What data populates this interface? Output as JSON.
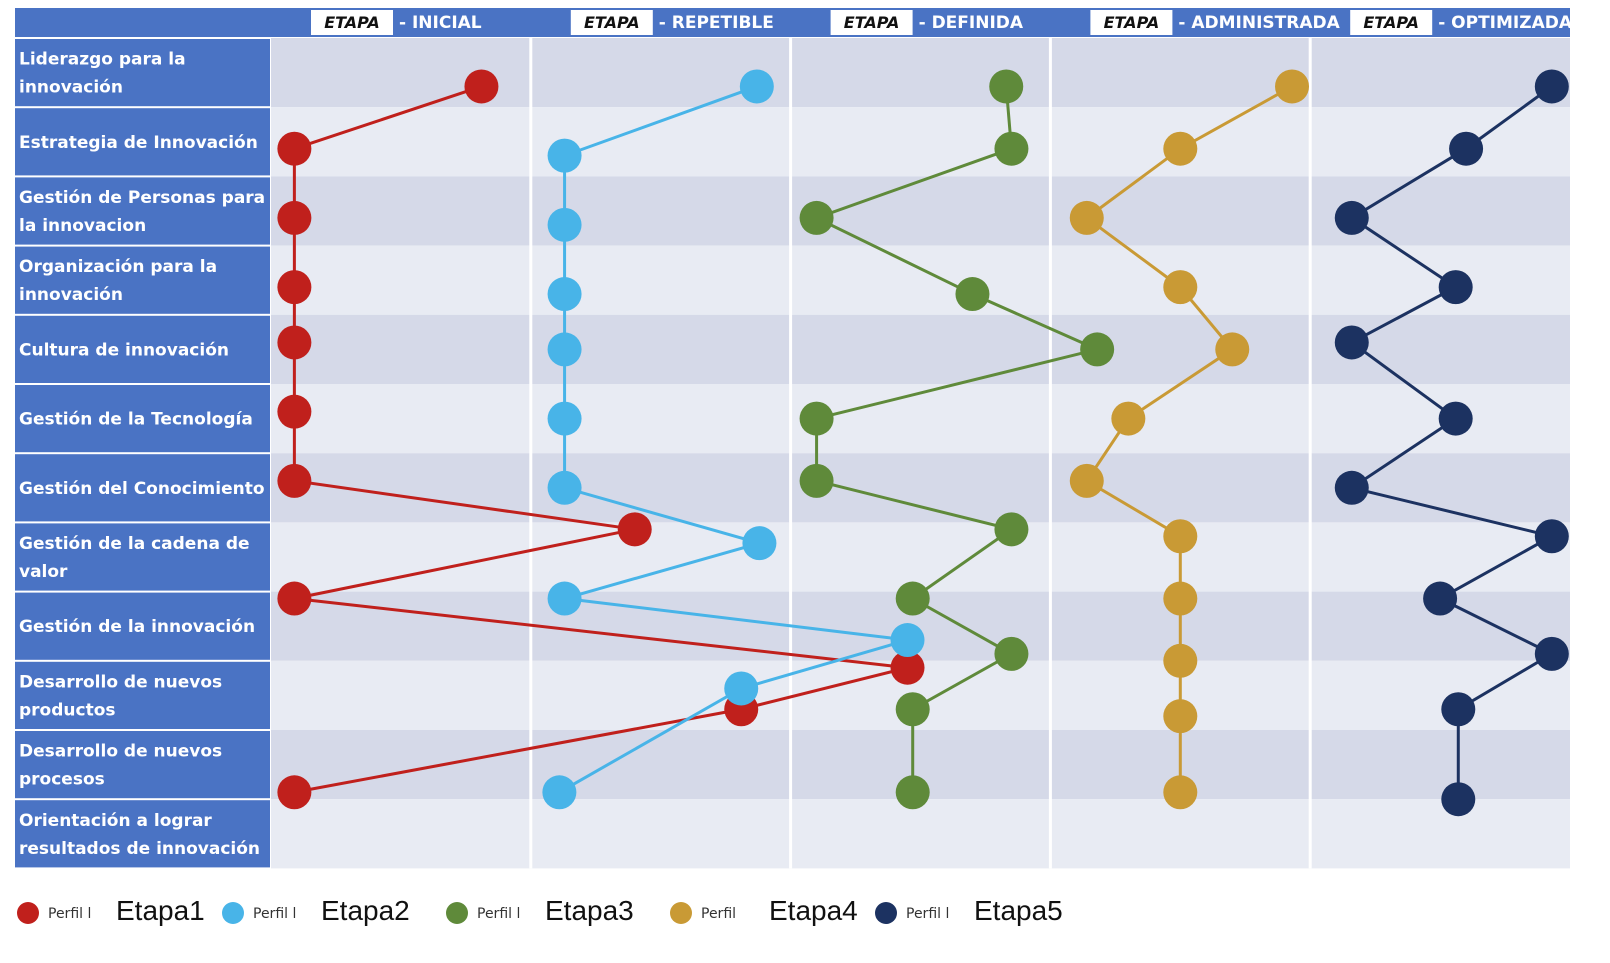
{
  "chart_data": {
    "type": "line",
    "orientation": "horizontal-profile",
    "stages": [
      {
        "etapa": "ETAPA",
        "name": "INICIAL"
      },
      {
        "etapa": "ETAPA",
        "name": "REPETIBLE"
      },
      {
        "etapa": "ETAPA",
        "name": "DEFINIDA"
      },
      {
        "etapa": "ETAPA",
        "name": "ADMINISTRADA"
      },
      {
        "etapa": "ETAPA",
        "name": "OPTIMIZADA"
      }
    ],
    "categories": [
      [
        "Liderazgo para la",
        "innovación"
      ],
      [
        "Estrategia de Innovación"
      ],
      [
        "Gestión de Personas para",
        "la innovacion"
      ],
      [
        "Organización para la",
        "innovación"
      ],
      [
        "Cultura de innovación"
      ],
      [
        "Gestión de la Tecnología"
      ],
      [
        "Gestión del Conocimiento"
      ],
      [
        "Gestión de la cadena de",
        "valor"
      ],
      [
        "Gestión de la innovación"
      ],
      [
        "Desarrollo de nuevos",
        "productos"
      ],
      [
        "Desarrollo de nuevos",
        "procesos"
      ],
      [
        "Orientación a lograr",
        "resultados de innovación"
      ]
    ],
    "xlim": [
      0,
      5
    ],
    "series": [
      {
        "key": "s1",
        "color": "#c0201c",
        "values": [
          0.81,
          0.09,
          0.09,
          0.09,
          0.09,
          0.09,
          0.09,
          1.4,
          0.09,
          2.45,
          1.81,
          0.09
        ],
        "row_pos": [
          0.2,
          1.1,
          2.1,
          3.1,
          3.9,
          4.9,
          5.9,
          6.6,
          7.6,
          8.6,
          9.2,
          10.4
        ]
      },
      {
        "key": "s2",
        "color": "#48b4e8",
        "values": [
          1.87,
          1.13,
          1.13,
          1.13,
          1.13,
          1.13,
          1.13,
          1.88,
          1.13,
          2.45,
          1.81,
          1.11
        ],
        "row_pos": [
          0.2,
          1.2,
          2.2,
          3.2,
          4.0,
          5.0,
          6.0,
          6.8,
          7.6,
          8.2,
          8.9,
          10.4
        ]
      },
      {
        "key": "s3",
        "color": "#5f8a3a",
        "values": [
          2.83,
          2.85,
          2.1,
          2.7,
          3.18,
          2.1,
          2.1,
          2.85,
          2.47,
          2.85,
          2.47,
          2.47
        ],
        "row_pos": [
          0.2,
          1.1,
          2.1,
          3.2,
          4.0,
          5.0,
          5.9,
          6.6,
          7.6,
          8.4,
          9.2,
          10.4
        ]
      },
      {
        "key": "s4",
        "color": "#c99a35",
        "values": [
          3.93,
          3.5,
          3.14,
          3.5,
          3.7,
          3.3,
          3.14,
          3.5,
          3.5,
          3.5,
          3.5,
          3.5
        ],
        "row_pos": [
          0.2,
          1.1,
          2.1,
          3.1,
          4.0,
          5.0,
          5.9,
          6.7,
          7.6,
          8.5,
          9.3,
          10.4
        ]
      },
      {
        "key": "s5",
        "color": "#1c3261",
        "values": [
          4.93,
          4.6,
          4.16,
          4.56,
          4.16,
          4.56,
          4.16,
          4.93,
          4.5,
          4.93,
          4.57,
          4.57
        ],
        "row_pos": [
          0.2,
          1.1,
          2.1,
          3.1,
          3.9,
          5.0,
          6.0,
          6.7,
          7.6,
          8.4,
          9.2,
          10.5
        ]
      }
    ],
    "legend": {
      "position": "bottom-left",
      "items": [
        {
          "small": "Perfil l",
          "big": "Etapa1",
          "color": "#c0201c"
        },
        {
          "small": "Perfil l",
          "big": "Etapa2",
          "color": "#48b4e8"
        },
        {
          "small": "Perfil l",
          "big": "Etapa3",
          "color": "#5f8a3a"
        },
        {
          "small": "Perfil",
          "big": "Etapa4",
          "color": "#c99a35"
        },
        {
          "small": "Perfil l",
          "big": "Etapa5",
          "color": "#1c3261"
        }
      ]
    },
    "colors": {
      "header_bg": "#4a73c4",
      "label_bg": "#4a73c4",
      "band_dark": "#d5d9e8",
      "band_light": "#e8ebf3"
    }
  }
}
